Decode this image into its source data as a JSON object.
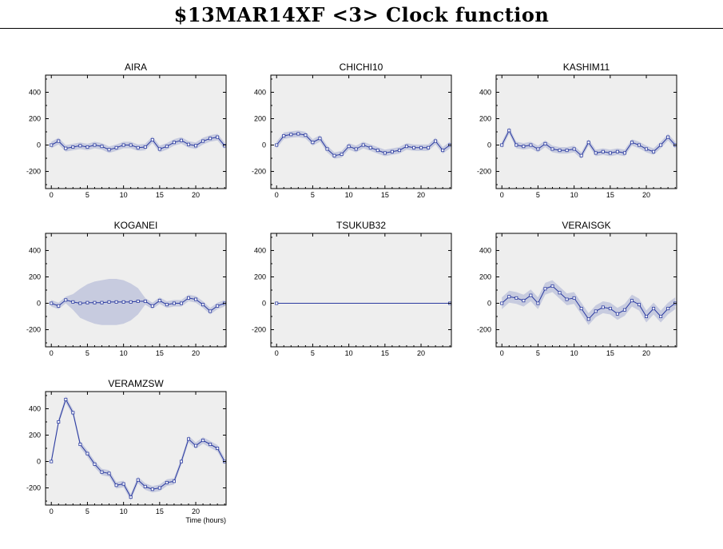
{
  "title": "$13MAR14XF <3>  Clock function",
  "colors": {
    "panel_bg": "#eeeeee",
    "band": "#c7cbdf",
    "line": "#2a3aa0",
    "marker_fill": "#ffffff"
  },
  "chart_data": [
    {
      "type": "line",
      "title": "AIRA",
      "x": [
        0,
        1,
        2,
        3,
        4,
        5,
        6,
        7,
        8,
        9,
        10,
        11,
        12,
        13,
        14,
        15,
        16,
        17,
        18,
        19,
        20,
        21,
        22,
        23,
        24
      ],
      "y": [
        0,
        30,
        -25,
        -15,
        -5,
        -15,
        0,
        -10,
        -35,
        -20,
        0,
        0,
        -20,
        -15,
        40,
        -30,
        -10,
        20,
        35,
        5,
        -5,
        30,
        50,
        60,
        -5
      ],
      "band": [
        25,
        25,
        25,
        25,
        25,
        25,
        25,
        25,
        25,
        25,
        25,
        25,
        25,
        25,
        25,
        25,
        25,
        25,
        25,
        25,
        25,
        25,
        25,
        25,
        25
      ],
      "xlim": [
        -0.8,
        24.2
      ],
      "ylim": [
        -330,
        530
      ],
      "xticks": [
        0,
        5,
        10,
        15,
        20
      ],
      "yticks": [
        -200,
        0,
        200,
        400
      ],
      "xlabel": "",
      "ylabel": ""
    },
    {
      "type": "line",
      "title": "CHICHI10",
      "x": [
        0,
        1,
        2,
        3,
        4,
        5,
        6,
        7,
        8,
        9,
        10,
        11,
        12,
        13,
        14,
        15,
        16,
        17,
        18,
        19,
        20,
        21,
        22,
        23,
        24
      ],
      "y": [
        0,
        70,
        80,
        85,
        75,
        20,
        50,
        -30,
        -80,
        -70,
        -10,
        -30,
        0,
        -20,
        -40,
        -60,
        -50,
        -40,
        -10,
        -20,
        -20,
        -20,
        30,
        -40,
        0
      ],
      "band": [
        25,
        25,
        25,
        25,
        25,
        25,
        25,
        25,
        25,
        25,
        25,
        25,
        25,
        25,
        25,
        25,
        25,
        25,
        25,
        25,
        25,
        25,
        25,
        25,
        25
      ],
      "xlim": [
        -0.8,
        24.2
      ],
      "ylim": [
        -330,
        530
      ],
      "xticks": [
        0,
        5,
        10,
        15,
        20
      ],
      "yticks": [
        -200,
        0,
        200,
        400
      ],
      "xlabel": "",
      "ylabel": ""
    },
    {
      "type": "line",
      "title": "KASHIM11",
      "x": [
        0,
        1,
        2,
        3,
        4,
        5,
        6,
        7,
        8,
        9,
        10,
        11,
        12,
        13,
        14,
        15,
        16,
        17,
        18,
        19,
        20,
        21,
        22,
        23,
        24
      ],
      "y": [
        0,
        110,
        0,
        -10,
        0,
        -30,
        10,
        -30,
        -40,
        -40,
        -30,
        -80,
        20,
        -60,
        -50,
        -60,
        -50,
        -60,
        20,
        0,
        -30,
        -50,
        0,
        60,
        0
      ],
      "band": [
        25,
        25,
        25,
        25,
        25,
        25,
        25,
        25,
        25,
        25,
        25,
        25,
        25,
        25,
        25,
        25,
        25,
        25,
        25,
        25,
        25,
        25,
        25,
        25,
        25
      ],
      "xlim": [
        -0.8,
        24.2
      ],
      "ylim": [
        -330,
        530
      ],
      "xticks": [
        0,
        5,
        10,
        15,
        20
      ],
      "yticks": [
        -200,
        0,
        200,
        400
      ],
      "xlabel": "",
      "ylabel": ""
    },
    {
      "type": "line",
      "title": "KOGANEI",
      "x": [
        0,
        1,
        2,
        3,
        4,
        5,
        6,
        7,
        8,
        9,
        10,
        11,
        12,
        13,
        14,
        15,
        16,
        17,
        18,
        19,
        20,
        21,
        22,
        23,
        24
      ],
      "y": [
        0,
        -20,
        25,
        10,
        0,
        5,
        5,
        5,
        10,
        10,
        10,
        10,
        15,
        15,
        -20,
        20,
        -10,
        0,
        0,
        40,
        30,
        -10,
        -60,
        -20,
        0
      ],
      "band": [
        25,
        25,
        25,
        60,
        110,
        140,
        160,
        170,
        175,
        175,
        165,
        140,
        100,
        25,
        25,
        25,
        25,
        25,
        25,
        25,
        25,
        25,
        25,
        25,
        25
      ],
      "xlim": [
        -0.8,
        24.2
      ],
      "ylim": [
        -330,
        530
      ],
      "xticks": [
        0,
        5,
        10,
        15,
        20
      ],
      "yticks": [
        -200,
        0,
        200,
        400
      ],
      "xlabel": "",
      "ylabel": ""
    },
    {
      "type": "line",
      "title": "TSUKUB32",
      "x": [
        0,
        24
      ],
      "y": [
        0,
        0
      ],
      "band": [
        0,
        0
      ],
      "xlim": [
        -0.8,
        24.2
      ],
      "ylim": [
        -330,
        530
      ],
      "xticks": [
        0,
        5,
        10,
        15,
        20
      ],
      "yticks": [
        -200,
        0,
        200,
        400
      ],
      "xlabel": "",
      "ylabel": ""
    },
    {
      "type": "line",
      "title": "VERAISGK",
      "x": [
        0,
        1,
        2,
        3,
        4,
        5,
        6,
        7,
        8,
        9,
        10,
        11,
        12,
        13,
        14,
        15,
        16,
        17,
        18,
        19,
        20,
        21,
        22,
        23,
        24
      ],
      "y": [
        0,
        50,
        40,
        20,
        60,
        0,
        110,
        130,
        80,
        30,
        40,
        -40,
        -120,
        -60,
        -30,
        -40,
        -80,
        -50,
        20,
        -10,
        -100,
        -40,
        -100,
        -40,
        0
      ],
      "band": [
        45,
        45,
        45,
        45,
        45,
        45,
        45,
        45,
        45,
        45,
        45,
        45,
        45,
        45,
        45,
        45,
        45,
        45,
        45,
        45,
        45,
        45,
        45,
        45,
        45
      ],
      "xlim": [
        -0.8,
        24.2
      ],
      "ylim": [
        -330,
        530
      ],
      "xticks": [
        0,
        5,
        10,
        15,
        20
      ],
      "yticks": [
        -200,
        0,
        200,
        400
      ],
      "xlabel": "",
      "ylabel": ""
    },
    {
      "type": "line",
      "title": "VERAMZSW",
      "x": [
        0,
        1,
        2,
        3,
        4,
        5,
        6,
        7,
        8,
        9,
        10,
        11,
        12,
        13,
        14,
        15,
        16,
        17,
        18,
        19,
        20,
        21,
        22,
        23,
        24
      ],
      "y": [
        0,
        300,
        470,
        370,
        130,
        60,
        -20,
        -80,
        -90,
        -180,
        -170,
        -270,
        -140,
        -190,
        -210,
        -200,
        -160,
        -150,
        0,
        170,
        120,
        160,
        130,
        100,
        0
      ],
      "band": [
        25,
        25,
        25,
        25,
        25,
        25,
        25,
        25,
        25,
        25,
        25,
        25,
        25,
        25,
        25,
        25,
        25,
        25,
        25,
        25,
        25,
        25,
        25,
        25,
        25
      ],
      "xlim": [
        -0.8,
        24.2
      ],
      "ylim": [
        -330,
        530
      ],
      "xticks": [
        0,
        5,
        10,
        15,
        20
      ],
      "yticks": [
        -200,
        0,
        200,
        400
      ],
      "xlabel": "Time (hours)",
      "ylabel": ""
    }
  ]
}
